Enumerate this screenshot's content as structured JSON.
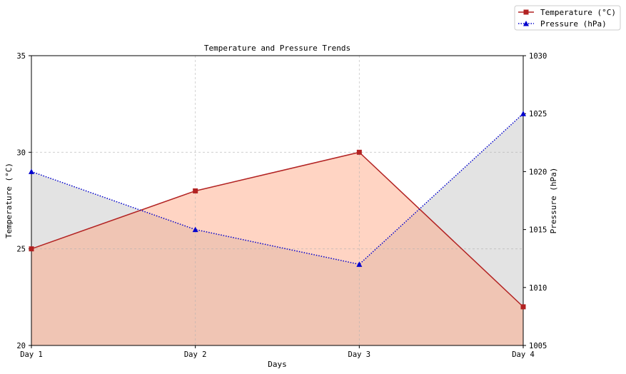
{
  "chart_data": {
    "type": "line",
    "title": "Temperature and Pressure Trends",
    "xlabel": "Days",
    "ylabel_left": "Temperature (°C)",
    "ylabel_right": "Pressure (hPa)",
    "categories": [
      "Day 1",
      "Day 2",
      "Day 3",
      "Day 4"
    ],
    "ylim_left": [
      20,
      35
    ],
    "ylim_right": [
      1005,
      1030
    ],
    "yticks_left": [
      20,
      25,
      30,
      35
    ],
    "yticks_right": [
      1005,
      1010,
      1015,
      1020,
      1025,
      1030
    ],
    "grid": true,
    "legend_position": "top-right",
    "series": [
      {
        "name": "Temperature (°C)",
        "axis": "left",
        "values": [
          25,
          28,
          30,
          22
        ],
        "color": "#b22222",
        "fill_color": "#ffa07a",
        "marker": "square",
        "line_style": "solid"
      },
      {
        "name": "Pressure (hPa)",
        "axis": "right",
        "values": [
          1020,
          1015,
          1012,
          1025
        ],
        "color": "#0000cd",
        "fill_color": "#c8c8c8",
        "marker": "triangle",
        "line_style": "dotted"
      }
    ]
  }
}
